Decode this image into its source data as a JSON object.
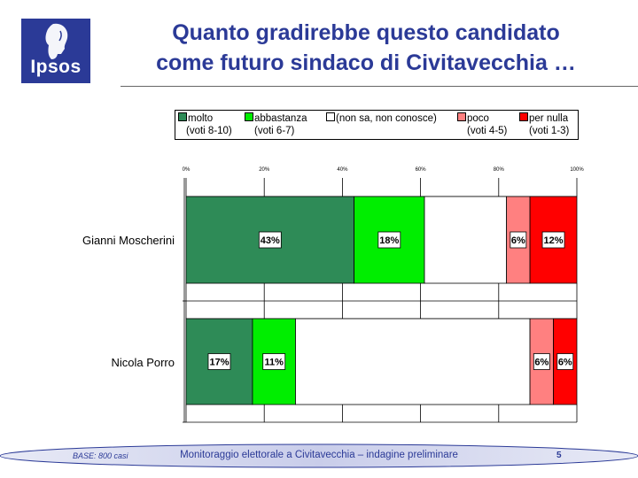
{
  "logo": {
    "text": "Ipsos"
  },
  "title": {
    "line1": "Quanto gradirebbe questo candidato",
    "line2": "come futuro sindaco di Civitavecchia …"
  },
  "colors": {
    "molto": "#2e8b57",
    "abbastanza": "#00ee00",
    "non_sa": "#ffffff",
    "poco": "#ff8080",
    "per_nulla": "#ff0000",
    "brand": "#2b3a97"
  },
  "legend": [
    {
      "label": "molto",
      "sub": "(voti 8-10)",
      "color": "#2e8b57"
    },
    {
      "label": "abbastanza",
      "sub": "(voti 6-7)",
      "color": "#00ee00"
    },
    {
      "label": "(non sa, non conosce)",
      "sub": "",
      "color": "#ffffff"
    },
    {
      "label": "poco",
      "sub": "(voti 4-5)",
      "color": "#ff8080"
    },
    {
      "label": "per nulla",
      "sub": "(voti 1-3)",
      "color": "#ff0000"
    }
  ],
  "chart_data": {
    "type": "bar",
    "orientation": "horizontal",
    "stacked": true,
    "xlim": [
      0,
      100
    ],
    "ticks": [
      "0%",
      "20%",
      "40%",
      "60%",
      "80%",
      "100%"
    ],
    "grid": true,
    "legend_position": "top",
    "categories": [
      "Gianni Moscherini",
      "Nicola Porro"
    ],
    "series": [
      {
        "name": "molto",
        "values": [
          43,
          17
        ],
        "labels": [
          "43%",
          "17%"
        ]
      },
      {
        "name": "abbastanza",
        "values": [
          18,
          11
        ],
        "labels": [
          "18%",
          "11%"
        ]
      },
      {
        "name": "(non sa, non conosce)",
        "values": [
          21,
          60
        ],
        "labels": [
          "",
          ""
        ]
      },
      {
        "name": "poco",
        "values": [
          6,
          6
        ],
        "labels": [
          "6%",
          "6%"
        ]
      },
      {
        "name": "per nulla",
        "values": [
          12,
          6
        ],
        "labels": [
          "12%",
          "6%"
        ]
      }
    ]
  },
  "footer": {
    "base": "BASE: 800 casi",
    "text": "Monitoraggio elettorale a Civitavecchia – indagine preliminare",
    "page": "5"
  }
}
